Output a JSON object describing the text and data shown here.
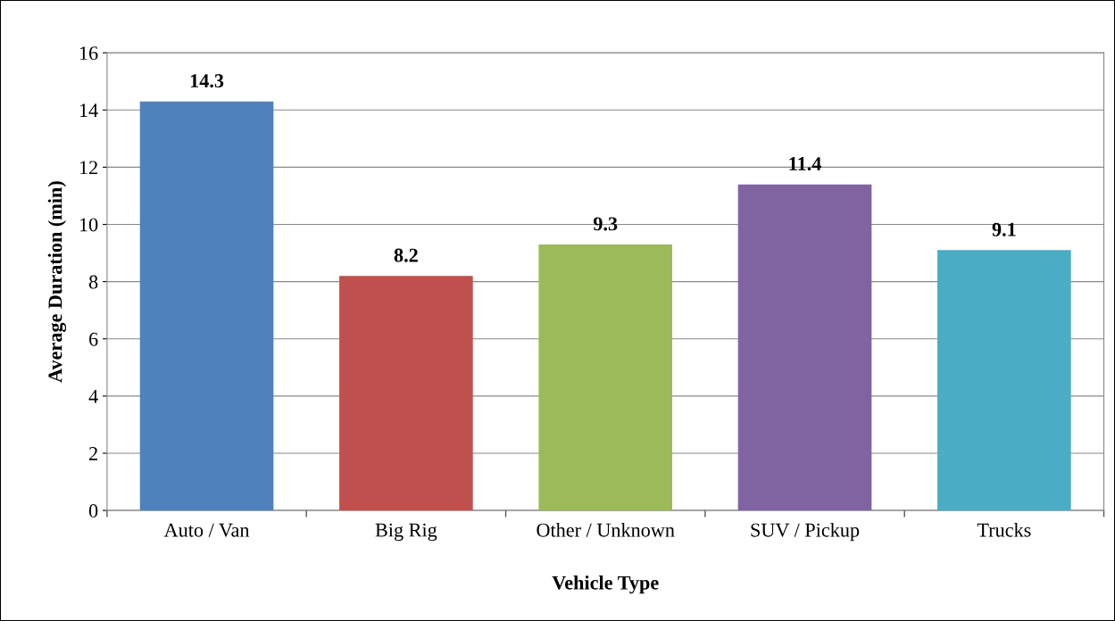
{
  "chart_data": {
    "type": "bar",
    "xlabel": "Vehicle Type",
    "ylabel": "Average Duration (min)",
    "categories": [
      "Auto / Van",
      "Big Rig",
      "Other / Unknown",
      "SUV / Pickup",
      "Trucks"
    ],
    "values": [
      14.3,
      8.2,
      9.3,
      11.4,
      9.1
    ],
    "colors": [
      "#4f81bd",
      "#c0504d",
      "#9bbb59",
      "#8064a2",
      "#4bacc6"
    ],
    "ylim": [
      0,
      16
    ],
    "yticks": [
      0,
      2,
      4,
      6,
      8,
      10,
      12,
      14,
      16
    ],
    "grid": "y",
    "data_labels": true
  }
}
